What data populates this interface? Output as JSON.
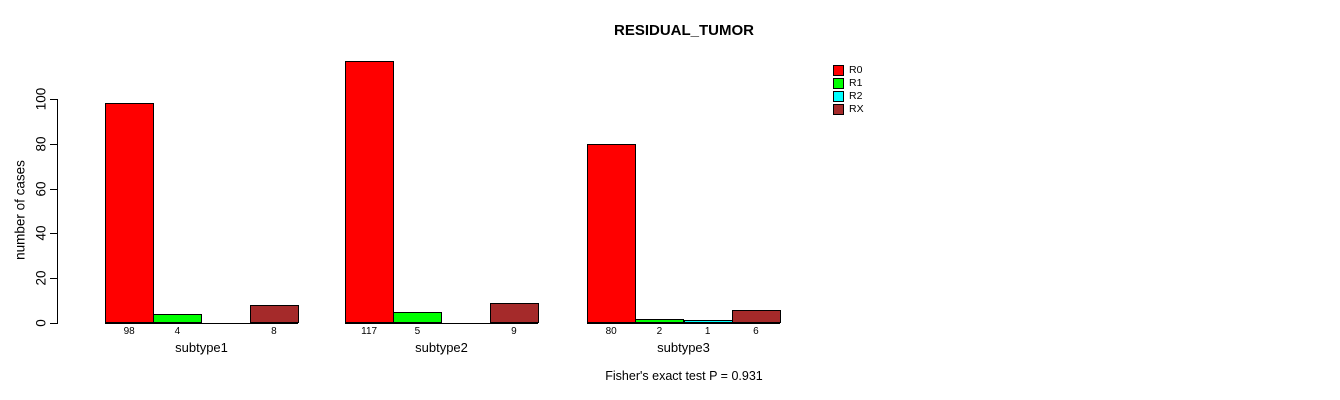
{
  "page": {
    "background": "#ffffff"
  },
  "chart_data": {
    "type": "bar",
    "title": "RESIDUAL_TUMOR",
    "ylabel": "number of cases",
    "xlabel": "",
    "ylim": [
      0,
      100
    ],
    "yticks": [
      0,
      20,
      40,
      60,
      80,
      100
    ],
    "grid": false,
    "legend_position": "right",
    "categories": [
      "subtype1",
      "subtype2",
      "subtype3"
    ],
    "series": [
      {
        "name": "R0",
        "color": "#ff0000",
        "values": [
          98,
          117,
          80
        ]
      },
      {
        "name": "R1",
        "color": "#00ff00",
        "values": [
          4,
          5,
          2
        ]
      },
      {
        "name": "R2",
        "color": "#00ffff",
        "values": [
          0,
          0,
          1
        ]
      },
      {
        "name": "RX",
        "color": "#a52a2a",
        "values": [
          8,
          9,
          6
        ]
      }
    ],
    "bar_value_labels": [
      [
        "98",
        "4",
        "",
        "8"
      ],
      [
        "117",
        "5",
        "",
        "9"
      ],
      [
        "80",
        "2",
        "1",
        "6"
      ]
    ],
    "footer": "Fisher's exact test P = 0.931"
  }
}
